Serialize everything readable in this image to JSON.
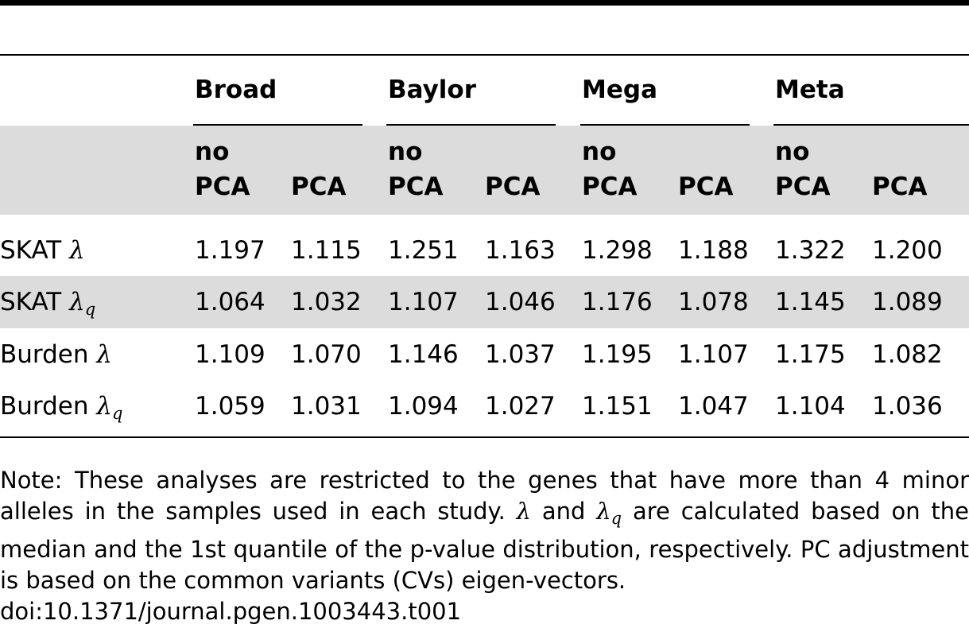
{
  "table": {
    "groups": [
      "Broad",
      "Baylor",
      "Mega",
      "Meta"
    ],
    "subheaders": [
      {
        "top": "no",
        "bottom": "PCA"
      },
      {
        "top": "",
        "bottom": "PCA"
      }
    ],
    "rows": [
      {
        "prefix": "SKAT",
        "symbol": "λ",
        "subscript": "",
        "values": [
          "1.197",
          "1.115",
          "1.251",
          "1.163",
          "1.298",
          "1.188",
          "1.322",
          "1.200"
        ]
      },
      {
        "prefix": "SKAT",
        "symbol": "λ",
        "subscript": "q",
        "values": [
          "1.064",
          "1.032",
          "1.107",
          "1.046",
          "1.176",
          "1.078",
          "1.145",
          "1.089"
        ]
      },
      {
        "prefix": "Burden",
        "symbol": "λ",
        "subscript": "",
        "values": [
          "1.109",
          "1.070",
          "1.146",
          "1.037",
          "1.195",
          "1.107",
          "1.175",
          "1.082"
        ]
      },
      {
        "prefix": "Burden",
        "symbol": "λ",
        "subscript": "q",
        "values": [
          "1.059",
          "1.031",
          "1.094",
          "1.027",
          "1.151",
          "1.047",
          "1.104",
          "1.036"
        ]
      }
    ]
  },
  "note": {
    "part1": "Note: These analyses are restricted to the genes that have more than 4 minor alleles in the samples used in each study.",
    "lambda": "λ",
    "and": "and",
    "lambda_q_sub": "q",
    "part2": "are calculated based on the median and the 1st quantile of the p-value distribution, respectively. PC adjustment is based on the common variants (CVs) eigen-vectors.",
    "doi": "doi:10.1371/journal.pgen.1003443.t001"
  }
}
